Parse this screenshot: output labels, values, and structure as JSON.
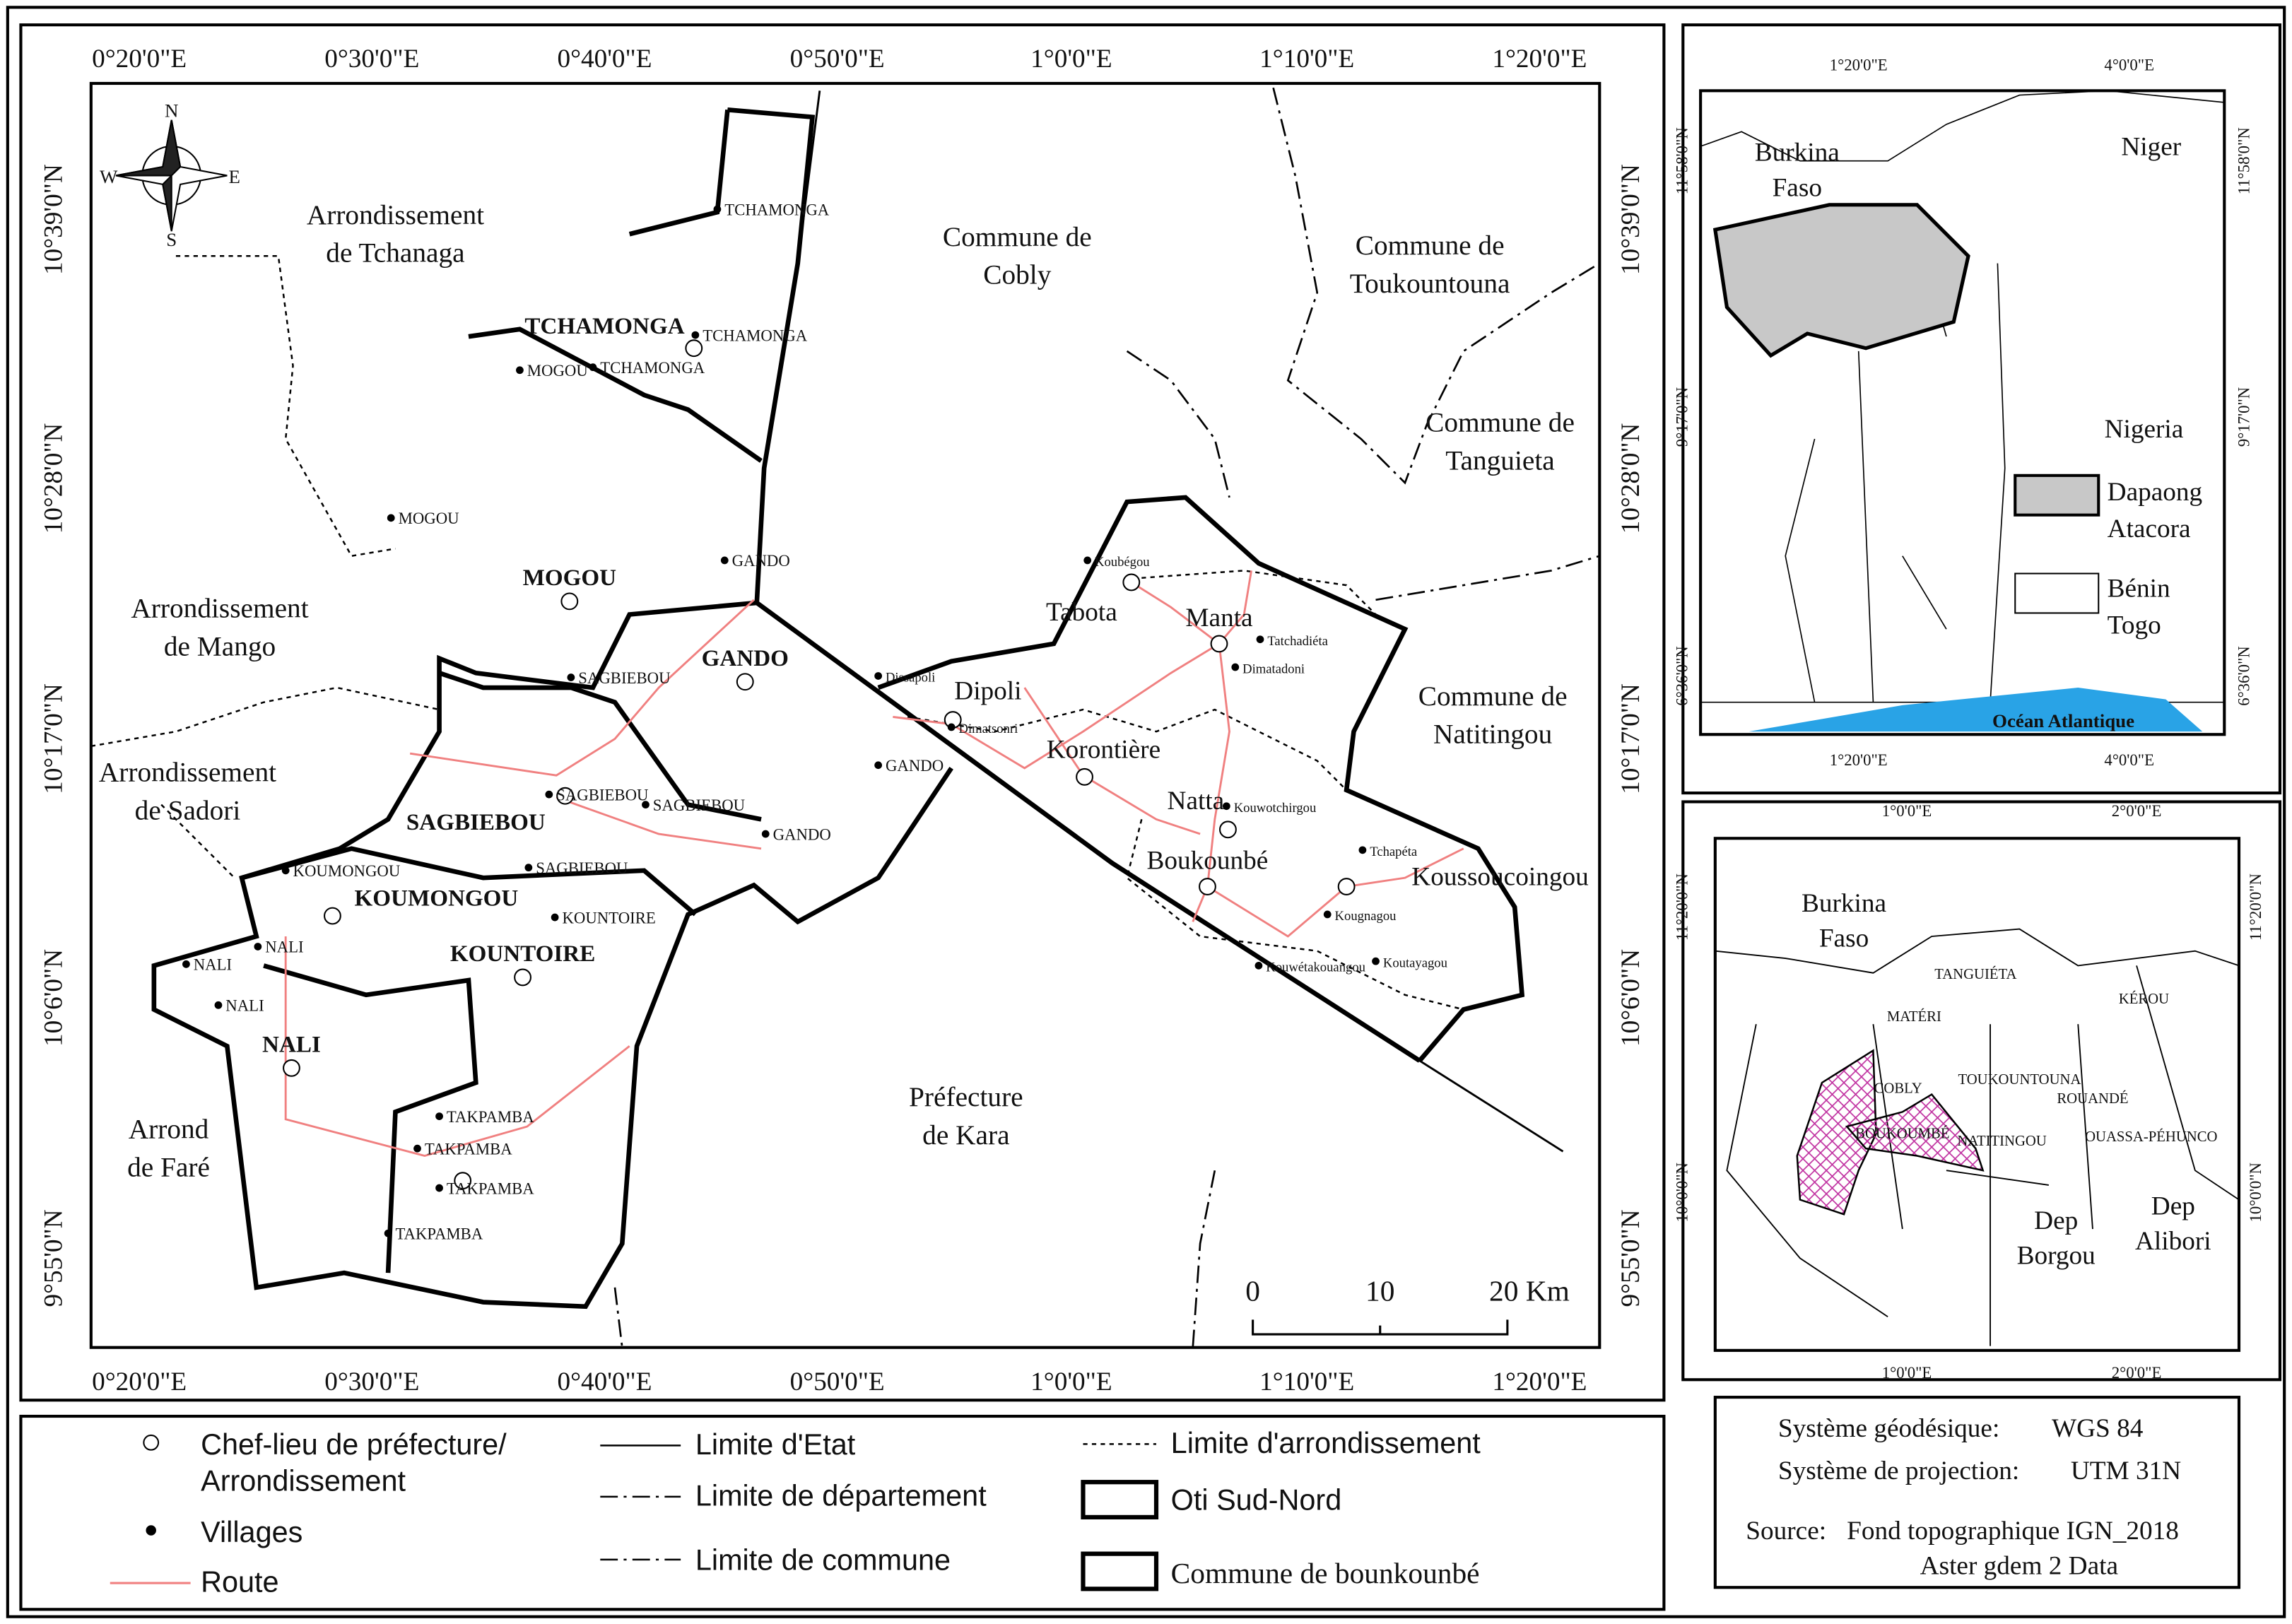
{
  "main_map": {
    "lon_ticks": [
      "0°20'0\"E",
      "0°30'0\"E",
      "0°40'0\"E",
      "0°50'0\"E",
      "1°0'0\"E",
      "1°10'0\"E",
      "1°20'0\"E"
    ],
    "lat_ticks": [
      "10°39'0\"N",
      "10°28'0\"N",
      "10°17'0\"N",
      "10°6'0\"N",
      "9°55'0\"N"
    ],
    "compass": [
      "N",
      "E",
      "S",
      "W"
    ],
    "regions": [
      [
        "Arrondissement",
        "de Tchanaga"
      ],
      [
        "Commune de",
        "Cobly"
      ],
      [
        "Commune de",
        "Toukountouna"
      ],
      [
        "Commune de",
        "Tanguieta"
      ],
      [
        "Arrondissement",
        "de Mango"
      ],
      [
        "Arrondissement",
        "de Sadori"
      ],
      [
        "Commune de",
        "Natitingou"
      ],
      [
        "Préfecture",
        "de Kara"
      ],
      [
        "Arrond",
        "de Faré"
      ]
    ],
    "arrondissements": [
      "TCHAMONGA",
      "MOGOU",
      "GANDO",
      "SAGBIEBOU",
      "KOUMONGOU",
      "KOUNTOIRE",
      "NALI"
    ],
    "localities": [
      "Tabota",
      "Manta",
      "Dipoli",
      "Korontière",
      "Natta",
      "Boukounbé",
      "Koussoucoingou"
    ],
    "villages": [
      "TCHAMONGA",
      "TCHAMONGA",
      "TCHAMONGA",
      "MOGOU",
      "MOGOU",
      "GANDO",
      "SAGBIEBOU",
      "SAGBIEBOU",
      "SAGBIEBOU",
      "GANDO",
      "GANDO",
      "SAGBIEBOU",
      "KOUMONGOU",
      "KOUNTOIRE",
      "NALI",
      "NALI",
      "NALI",
      "TAKPAMBA",
      "TAKPAMBA",
      "TAKPAMBA",
      "TAKPAMBA",
      "Koubégou",
      "Tatchadiéta",
      "Dimatadoni",
      "Dissapoli",
      "Dimatsonri",
      "Kouwotchirgou",
      "Tchapéta",
      "Kougnagou",
      "Kouwétakouangou",
      "Koutayagou"
    ],
    "scale": [
      "0",
      "10",
      "20 Km"
    ]
  },
  "inset_west_africa": {
    "lon_ticks": [
      "1°20'0\"E",
      "4°0'0\"E"
    ],
    "lat_ticks": [
      "11°58'0\"N",
      "9°17'0\"N",
      "6°36'0\"N"
    ],
    "labels": [
      [
        "Burkina",
        "Faso"
      ],
      "Niger",
      "Nigeria"
    ],
    "ocean": "Océan Atlantique",
    "legend": [
      [
        "Dapaong",
        "Atacora"
      ],
      [
        "Bénin",
        "Togo"
      ]
    ]
  },
  "inset_benin": {
    "lon_ticks": [
      "1°0'0\"E",
      "2°0'0\"E"
    ],
    "lat_ticks": [
      "11°20'0\"N",
      "10°0'0\"N"
    ],
    "labels": [
      [
        "Burkina",
        "Faso"
      ],
      "TANGUIÉTA",
      "KÉROU",
      "MATÉRI",
      "COBLY",
      "TOUKOUNTOUNA",
      "ROUANDÉ",
      "BOUKOUMBÉ",
      "NATITINGOU",
      "OUASSA-PÉHUNCO",
      [
        "Dep",
        "Borgou"
      ],
      [
        "Dep",
        "Alibori"
      ]
    ]
  },
  "legend": {
    "items": [
      [
        "Chef-lieu de préfecture/",
        "Arrondissement"
      ],
      "Villages",
      "Route",
      "Limite d'Etat",
      "Limite de département",
      "Limite de commune",
      "Limite d'arrondissement",
      "Oti Sud-Nord",
      "Commune de bounkounbé"
    ]
  },
  "info": {
    "geodetic_label": "Système géodésique:",
    "geodetic_value": "WGS 84",
    "projection_label": "Système de projection:",
    "projection_value": "UTM 31N",
    "source_label": "Source:",
    "source_value": "Fond topographique IGN_2018",
    "source_extra": "Aster gdem 2 Data"
  }
}
